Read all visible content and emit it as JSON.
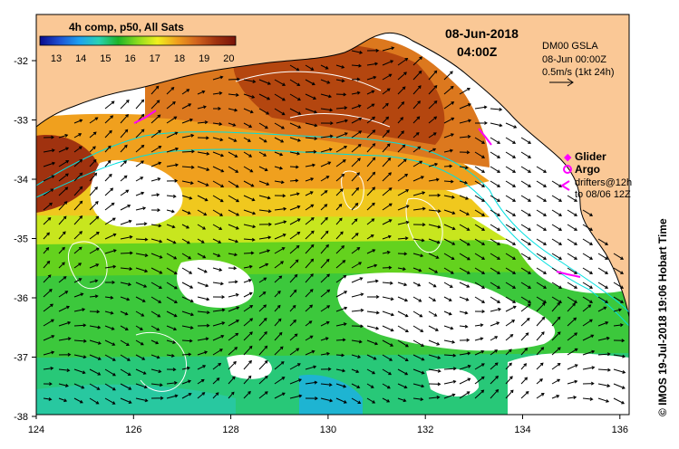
{
  "title": "08-Jun-2018",
  "time": "04:00Z",
  "colorbar": {
    "label": "4h comp, p50, All Sats",
    "ticks": [
      "13",
      "14",
      "15",
      "16",
      "17",
      "18",
      "19",
      "20"
    ],
    "stops": [
      "#0a0a8c",
      "#1e50d2",
      "#1ea0f0",
      "#28d2b4",
      "#1eb428",
      "#8cdc1e",
      "#f0f01e",
      "#f0a01e",
      "#d2641e",
      "#a0320f",
      "#78140a"
    ]
  },
  "gsla": {
    "label": "DM00 GSLA",
    "date": "08-Jun 00:00Z",
    "scale": "0.5m/s (1kt 24h)"
  },
  "legend": {
    "glider": "Glider",
    "argo": "Argo",
    "drifters_line1": "drifters@12h",
    "drifters_line2": "to 08/06 12Z"
  },
  "credit": "© IMOS 19-Jul-2018 19:06 Hobart Time",
  "axes": {
    "x_ticks": [
      "124",
      "126",
      "128",
      "130",
      "132",
      "134",
      "136"
    ],
    "y_ticks": [
      "-32",
      "-33",
      "-34",
      "-35",
      "-36",
      "-37",
      "-38"
    ]
  },
  "colors": {
    "land": "#fac896",
    "glider": "#ff00ff",
    "shelf_contour": "#00e0e0",
    "sla_contour": "#ffffff"
  }
}
